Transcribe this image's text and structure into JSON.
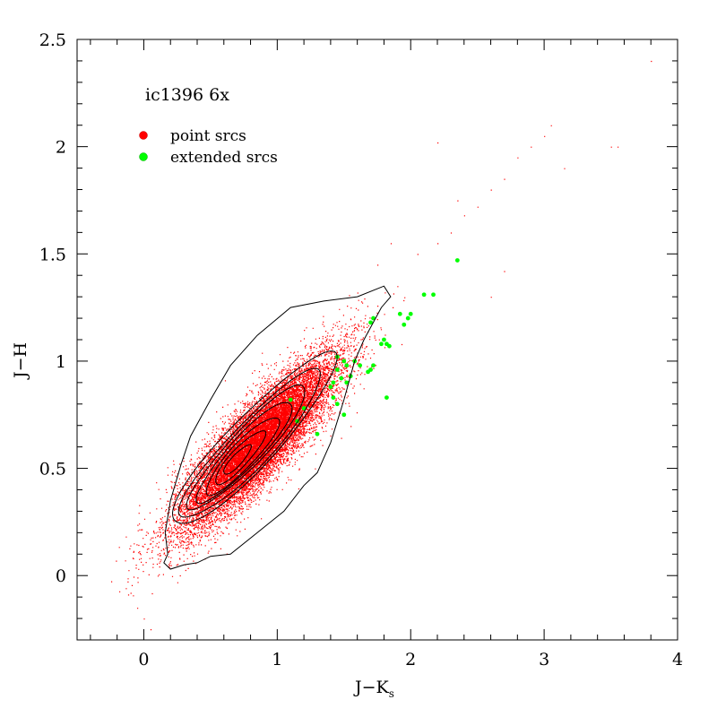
{
  "chart_data": {
    "type": "scatter",
    "title": "ic1396 6x",
    "xlabel": "J−K",
    "xlabel_sub": "s",
    "ylabel": "J−H",
    "xlim": [
      -0.5,
      4
    ],
    "ylim": [
      -0.3,
      2.5
    ],
    "x_ticks": [
      "0",
      "1",
      "2",
      "3",
      "4"
    ],
    "x_tick_values": [
      0,
      1,
      2,
      3,
      4
    ],
    "y_ticks": [
      "0",
      "0.5",
      "1",
      "1.5",
      "2",
      "2.5"
    ],
    "y_tick_values": [
      0,
      0.5,
      1,
      1.5,
      2,
      2.5
    ],
    "grid": false,
    "legend_placement": "top-left",
    "series": [
      {
        "name": "point srcs",
        "color": "#ff0000",
        "distribution": {
          "center": [
            0.85,
            0.62
          ],
          "slope": 0.63,
          "spread_major": 0.34,
          "spread_minor": 0.085
        },
        "tail_points": [
          [
            1.9,
            1.35
          ],
          [
            2.05,
            1.5
          ],
          [
            2.2,
            1.55
          ],
          [
            2.3,
            1.6
          ],
          [
            2.4,
            1.68
          ],
          [
            2.5,
            1.72
          ],
          [
            2.6,
            1.8
          ],
          [
            2.7,
            1.85
          ],
          [
            2.9,
            2.0
          ],
          [
            3.0,
            2.05
          ],
          [
            3.05,
            2.1
          ],
          [
            3.15,
            1.9
          ],
          [
            3.5,
            2.0
          ],
          [
            3.55,
            2.0
          ],
          [
            3.8,
            2.4
          ],
          [
            2.2,
            2.02
          ],
          [
            1.55,
            1.25
          ],
          [
            1.6,
            1.32
          ],
          [
            1.75,
            1.45
          ],
          [
            2.35,
            1.75
          ],
          [
            2.8,
            1.95
          ],
          [
            1.85,
            1.55
          ],
          [
            2.6,
            1.3
          ],
          [
            2.7,
            1.42
          ],
          [
            -0.05,
            -0.15
          ],
          [
            0.0,
            -0.2
          ],
          [
            -0.1,
            -0.08
          ],
          [
            0.05,
            -0.25
          ]
        ]
      },
      {
        "name": "extended srcs",
        "color": "#00ff00",
        "points": [
          [
            2.35,
            1.47
          ],
          [
            2.1,
            1.31
          ],
          [
            2.17,
            1.31
          ],
          [
            1.92,
            1.22
          ],
          [
            1.98,
            1.2
          ],
          [
            2.0,
            1.22
          ],
          [
            1.7,
            1.18
          ],
          [
            1.72,
            1.2
          ],
          [
            1.8,
            1.1
          ],
          [
            1.78,
            1.08
          ],
          [
            1.82,
            1.08
          ],
          [
            1.84,
            1.07
          ],
          [
            1.95,
            1.17
          ],
          [
            1.45,
            1.02
          ],
          [
            1.5,
            1.0
          ],
          [
            1.52,
            0.98
          ],
          [
            1.58,
            1.0
          ],
          [
            1.62,
            0.98
          ],
          [
            1.7,
            0.96
          ],
          [
            1.72,
            0.98
          ],
          [
            1.68,
            0.95
          ],
          [
            1.48,
            0.92
          ],
          [
            1.52,
            0.9
          ],
          [
            1.55,
            0.93
          ],
          [
            1.4,
            0.88
          ],
          [
            1.42,
            0.83
          ],
          [
            1.45,
            0.8
          ],
          [
            1.5,
            0.75
          ],
          [
            1.2,
            0.78
          ],
          [
            1.15,
            0.72
          ],
          [
            1.1,
            0.82
          ],
          [
            1.82,
            0.83
          ],
          [
            1.3,
            0.66
          ],
          [
            1.42,
            0.9
          ],
          [
            1.45,
            0.96
          ]
        ]
      }
    ],
    "contours": [
      {
        "level": "outer",
        "path_data": [
          [
            0.15,
            0.06
          ],
          [
            0.18,
            0.1
          ],
          [
            0.16,
            0.2
          ],
          [
            0.2,
            0.35
          ],
          [
            0.28,
            0.52
          ],
          [
            0.35,
            0.65
          ],
          [
            0.5,
            0.82
          ],
          [
            0.65,
            0.98
          ],
          [
            0.85,
            1.12
          ],
          [
            1.1,
            1.25
          ],
          [
            1.35,
            1.28
          ],
          [
            1.6,
            1.3
          ],
          [
            1.8,
            1.35
          ],
          [
            1.85,
            1.3
          ],
          [
            1.78,
            1.25
          ],
          [
            1.65,
            1.1
          ],
          [
            1.58,
            1.0
          ],
          [
            1.5,
            0.82
          ],
          [
            1.4,
            0.62
          ],
          [
            1.3,
            0.48
          ],
          [
            1.2,
            0.42
          ],
          [
            1.05,
            0.3
          ],
          [
            0.85,
            0.2
          ],
          [
            0.65,
            0.1
          ],
          [
            0.5,
            0.09
          ],
          [
            0.4,
            0.06
          ],
          [
            0.3,
            0.05
          ],
          [
            0.2,
            0.03
          ]
        ]
      }
    ],
    "inner_contours": [
      {
        "center": [
          0.82,
          0.63
        ],
        "angle_slope": 0.63,
        "a": 0.72,
        "b": 0.14
      },
      {
        "center": [
          0.8,
          0.61
        ],
        "angle_slope": 0.63,
        "a": 0.62,
        "b": 0.12
      },
      {
        "center": [
          0.78,
          0.6
        ],
        "angle_slope": 0.63,
        "a": 0.52,
        "b": 0.1
      },
      {
        "center": [
          0.76,
          0.58
        ],
        "angle_slope": 0.63,
        "a": 0.42,
        "b": 0.085
      },
      {
        "center": [
          0.74,
          0.56
        ],
        "angle_slope": 0.63,
        "a": 0.32,
        "b": 0.07
      },
      {
        "center": [
          0.72,
          0.55
        ],
        "angle_slope": 0.63,
        "a": 0.22,
        "b": 0.05
      },
      {
        "center": [
          0.7,
          0.54
        ],
        "angle_slope": 0.63,
        "a": 0.12,
        "b": 0.03
      }
    ]
  }
}
